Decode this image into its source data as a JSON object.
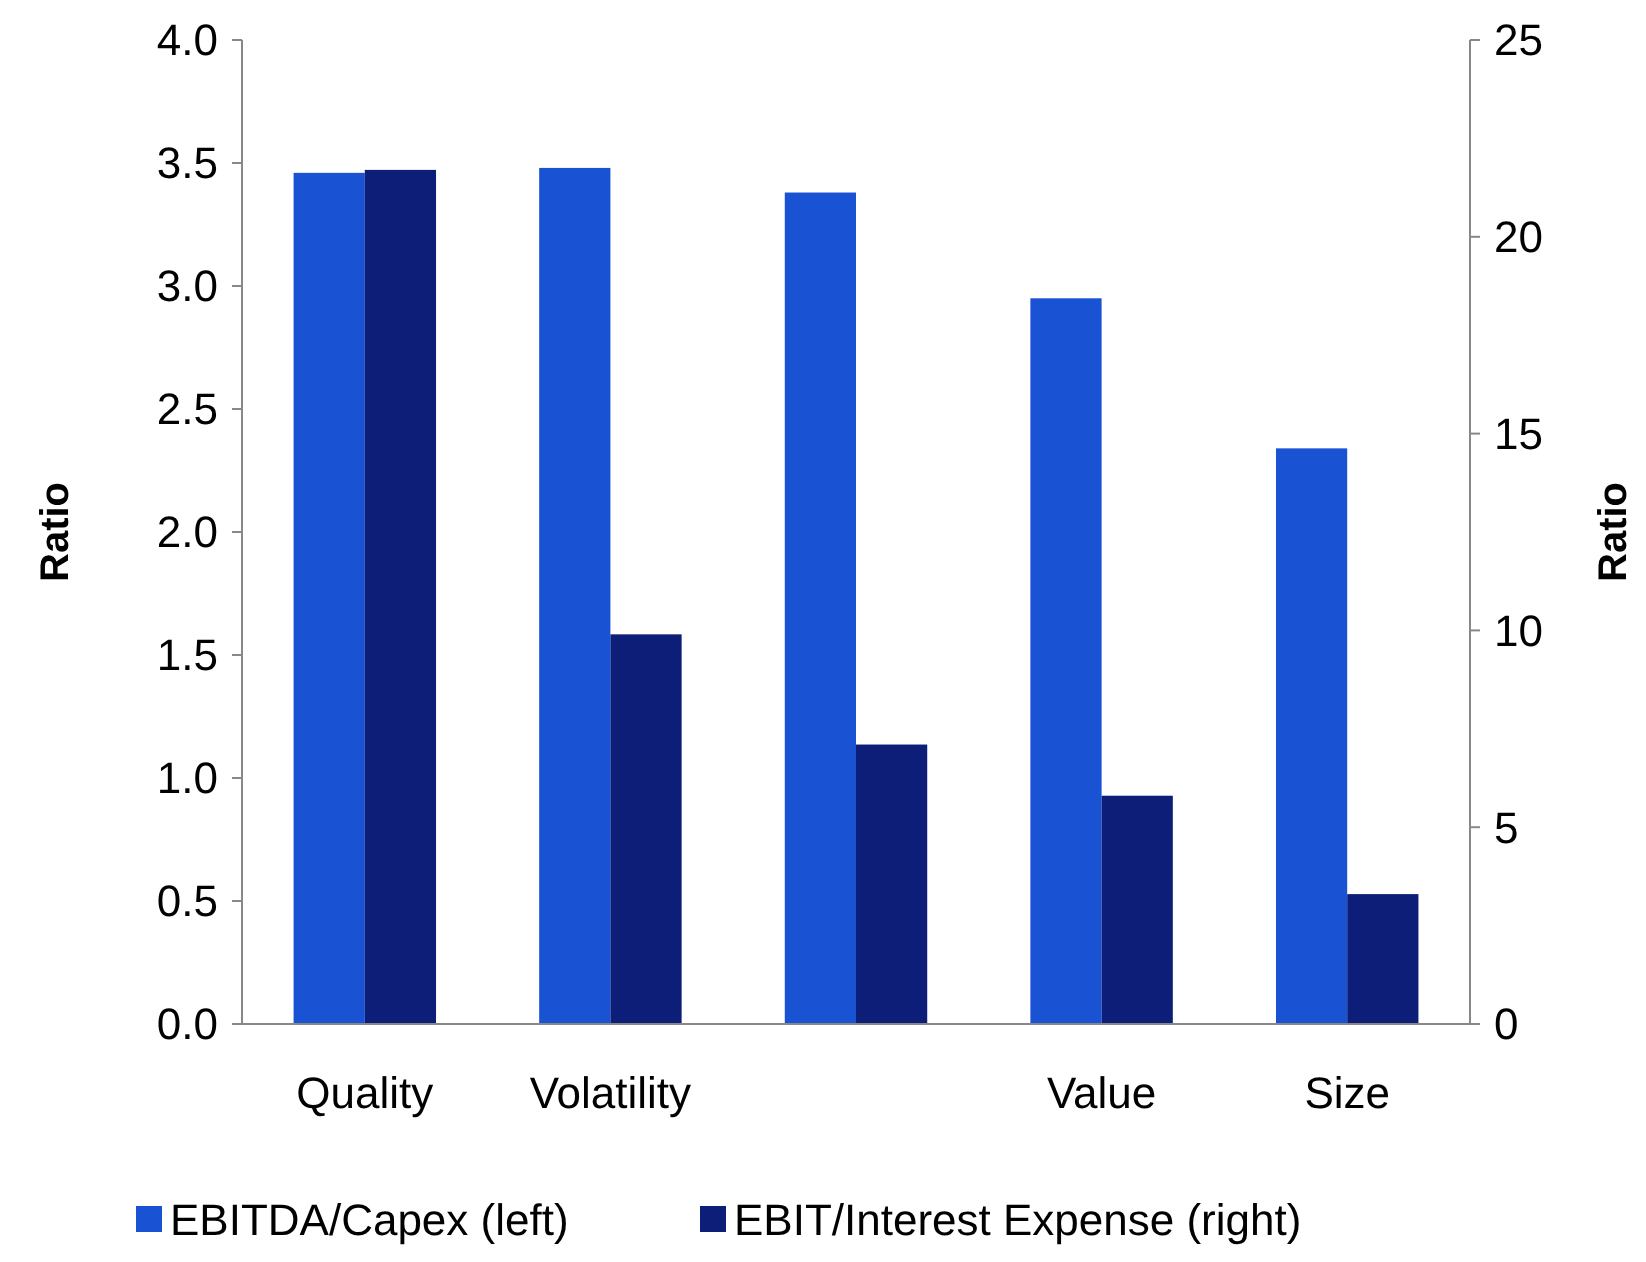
{
  "chart_data": {
    "type": "bar",
    "categories": [
      "Quality",
      "Volatility",
      null,
      "Value",
      "Size"
    ],
    "series": [
      {
        "name": "EBITDA/Capex (left)",
        "color": "#1a52d4",
        "values": [
          3.46,
          3.48,
          3.38,
          2.95,
          2.34
        ]
      },
      {
        "name": "EBIT/Interest Expense (right)",
        "color": "#0c1e78",
        "values": [
          21.7,
          9.9,
          7.1,
          5.8,
          3.3
        ],
        "axis": "y2"
      }
    ],
    "ylabel": "Ratio",
    "y2label": "Ratio",
    "ylim": [
      0,
      4
    ],
    "yticks": [
      {
        "value": 0,
        "label": "0.0"
      },
      {
        "value": 0.5,
        "label": "0.5"
      },
      {
        "value": 1,
        "label": "1.0"
      },
      {
        "value": 1.5,
        "label": "1.5"
      },
      {
        "value": 2,
        "label": "2.0"
      },
      {
        "value": 2.5,
        "label": "2.5"
      },
      {
        "value": 3,
        "label": "3.0"
      },
      {
        "value": 3.5,
        "label": "3.5"
      },
      {
        "value": 4,
        "label": "4.0"
      }
    ],
    "y2lim": [
      0,
      25
    ],
    "y2ticks": [
      0,
      5,
      10,
      15,
      20,
      25
    ],
    "grid": false,
    "legend": "bottom"
  }
}
